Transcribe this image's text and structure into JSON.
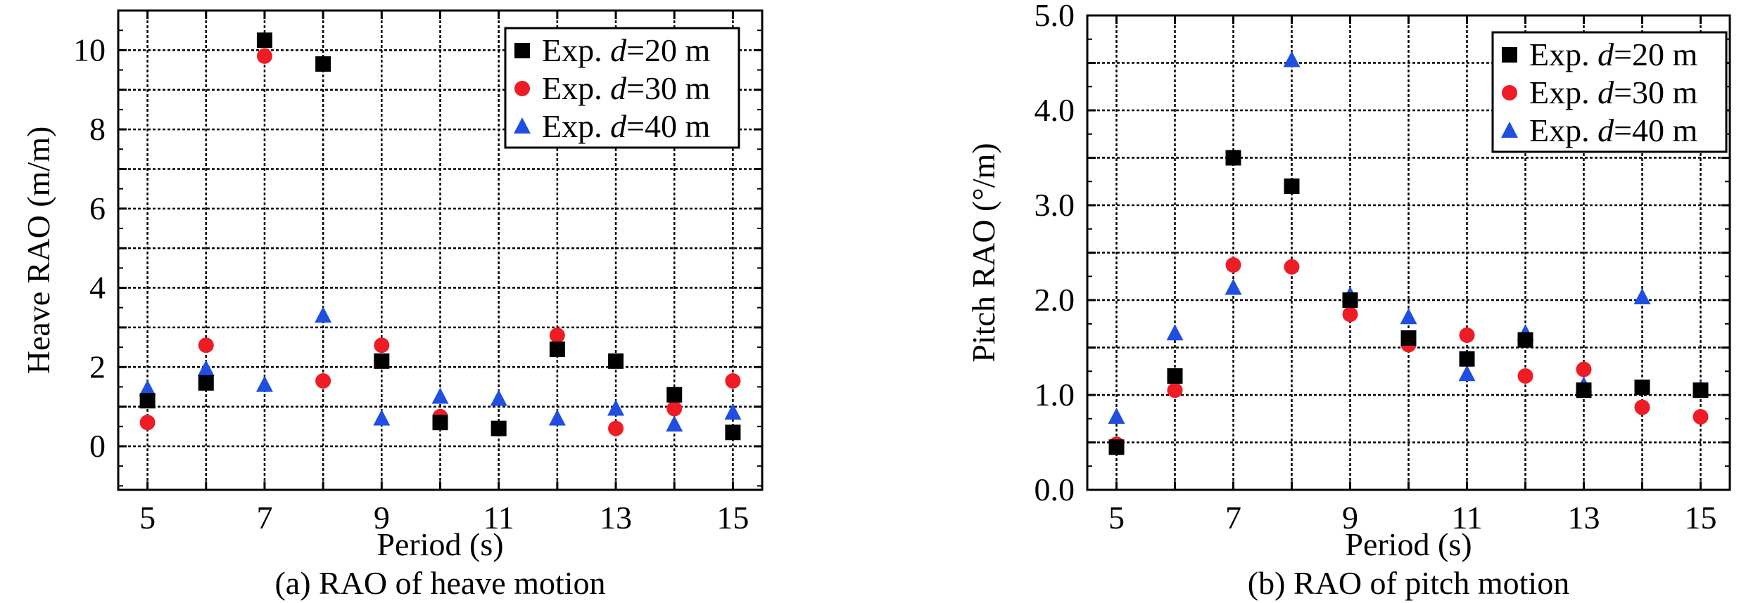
{
  "chart_data": [
    {
      "type": "scatter",
      "xlabel": "Period (s)",
      "ylabel": "Heave RAO (m/m)",
      "caption": "(a) RAO of heave motion",
      "xlim": [
        4.5,
        15.5
      ],
      "ylim": [
        -1.1,
        11.0
      ],
      "xticks": [
        5,
        7,
        9,
        11,
        13,
        15
      ],
      "xtick_labels": [
        "5",
        "7",
        "9",
        "11",
        "13",
        "15"
      ],
      "yticks": [
        0,
        2,
        4,
        6,
        8,
        10
      ],
      "ytick_labels": [
        "0",
        "2",
        "4",
        "6",
        "8",
        "10"
      ],
      "grid": true,
      "legend_position": "top-right",
      "series": [
        {
          "name_prefix": "Exp. ",
          "name_var": "d",
          "name_suffix": "=20 m",
          "marker": "square",
          "color": "#000000",
          "x": [
            5,
            6,
            7,
            8,
            9,
            10,
            11,
            12,
            13,
            14,
            15
          ],
          "y": [
            1.15,
            1.6,
            10.25,
            9.65,
            2.15,
            0.6,
            0.45,
            2.45,
            2.15,
            1.3,
            0.35
          ]
        },
        {
          "name_prefix": "Exp. ",
          "name_var": "d",
          "name_suffix": "=30 m",
          "marker": "circle",
          "color": "#ee1c25",
          "x": [
            5,
            6,
            7,
            8,
            9,
            10,
            11,
            12,
            13,
            14,
            15
          ],
          "y": [
            0.6,
            2.55,
            9.85,
            1.65,
            2.55,
            0.75,
            0.45,
            2.8,
            0.45,
            0.95,
            1.65
          ]
        },
        {
          "name_prefix": "Exp. ",
          "name_var": "d",
          "name_suffix": "=40 m",
          "marker": "triangle",
          "color": "#1f4fe0",
          "x": [
            5,
            6,
            7,
            8,
            9,
            10,
            11,
            12,
            13,
            14,
            15
          ],
          "y": [
            1.45,
            1.95,
            1.55,
            3.3,
            0.7,
            1.25,
            1.2,
            0.7,
            0.95,
            0.55,
            0.85
          ]
        }
      ]
    },
    {
      "type": "scatter",
      "xlabel": "Period (s)",
      "ylabel": "Pitch RAO (°/m)",
      "caption": "(b) RAO of pitch motion",
      "xlim": [
        4.5,
        15.5
      ],
      "ylim": [
        0.0,
        5.0
      ],
      "xticks": [
        5,
        7,
        9,
        11,
        13,
        15
      ],
      "xtick_labels": [
        "5",
        "7",
        "9",
        "11",
        "13",
        "15"
      ],
      "yticks": [
        0.0,
        1.0,
        2.0,
        3.0,
        4.0,
        5.0
      ],
      "ytick_labels": [
        "0.0",
        "1.0",
        "2.0",
        "3.0",
        "4.0",
        "5.0"
      ],
      "grid": true,
      "legend_position": "top-right",
      "series": [
        {
          "name_prefix": "Exp. ",
          "name_var": "d",
          "name_suffix": "=20 m",
          "marker": "square",
          "color": "#000000",
          "x": [
            5,
            6,
            7,
            8,
            9,
            10,
            11,
            12,
            13,
            14,
            15
          ],
          "y": [
            0.45,
            1.2,
            3.5,
            3.2,
            2.0,
            1.6,
            1.38,
            1.58,
            1.05,
            1.08,
            1.05
          ]
        },
        {
          "name_prefix": "Exp. ",
          "name_var": "d",
          "name_suffix": "=30 m",
          "marker": "circle",
          "color": "#ee1c25",
          "x": [
            5,
            6,
            7,
            8,
            9,
            10,
            11,
            12,
            13,
            14,
            15
          ],
          "y": [
            0.48,
            1.05,
            2.37,
            2.35,
            1.85,
            1.53,
            1.63,
            1.2,
            1.27,
            0.87,
            0.77
          ]
        },
        {
          "name_prefix": "Exp. ",
          "name_var": "d",
          "name_suffix": "=40 m",
          "marker": "triangle",
          "color": "#1f4fe0",
          "x": [
            5,
            6,
            7,
            8,
            9,
            10,
            11,
            12,
            13,
            14,
            15
          ],
          "y": [
            0.77,
            1.65,
            2.13,
            4.53,
            2.05,
            1.82,
            1.22,
            1.65,
            1.1,
            2.03,
            1.06
          ]
        }
      ]
    }
  ]
}
